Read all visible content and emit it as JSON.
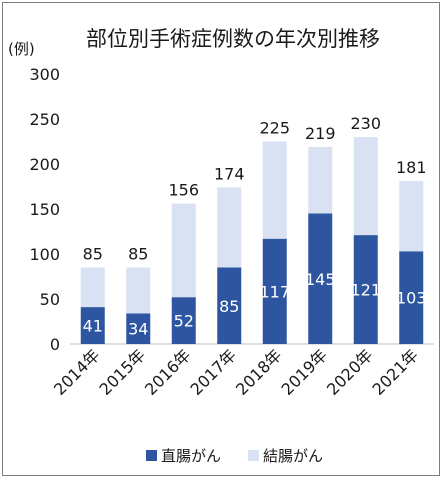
{
  "chart_data": {
    "type": "bar",
    "stacked": true,
    "title": "部位別手術症例数の年次別推移",
    "y_unit": "(例)",
    "categories": [
      "2014年",
      "2015年",
      "2016年",
      "2017年",
      "2018年",
      "2019年",
      "2020年",
      "2021年"
    ],
    "series": [
      {
        "name": "直腸がん",
        "color": "#2e55a0",
        "values": [
          41,
          34,
          52,
          85,
          117,
          145,
          121,
          103
        ]
      },
      {
        "name": "結腸がん",
        "color": "#d9e2f2",
        "values": [
          44,
          51,
          104,
          89,
          108,
          74,
          109,
          78
        ]
      }
    ],
    "totals": [
      85,
      85,
      156,
      174,
      225,
      219,
      230,
      181
    ],
    "ylim": [
      0,
      300
    ],
    "yticks": [
      0,
      50,
      100,
      150,
      200,
      250,
      300
    ],
    "grid": false,
    "legend_position": "bottom"
  }
}
